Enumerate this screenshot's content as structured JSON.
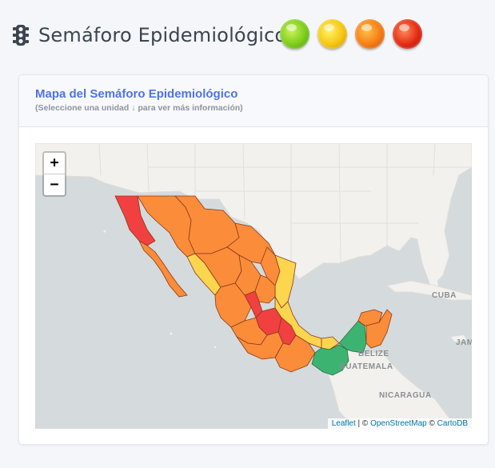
{
  "header": {
    "title": "Semáforo Epidemiológico",
    "icon": "traffic-light-icon",
    "lights": [
      {
        "name": "green",
        "color": "#7ccc1a"
      },
      {
        "name": "yellow",
        "color": "#f6c511"
      },
      {
        "name": "orange",
        "color": "#f57d12"
      },
      {
        "name": "red",
        "color": "#e22a12"
      }
    ]
  },
  "card": {
    "title": "Mapa del Semáforo Epidemiológico",
    "subtitle": "(Seleccione una unidad ↓ para ver más información)"
  },
  "map": {
    "zoom_in_label": "+",
    "zoom_out_label": "−",
    "labels": {
      "cuba": "CUBA",
      "belize": "BELIZE",
      "guatemala": "GUATEMALA",
      "nicaragua": "NICARAGUA",
      "jamaica": "JAM"
    },
    "attribution": {
      "leaflet": "Leaflet",
      "sep1": " | © ",
      "osm": "OpenStreetMap",
      "sep2": " © ",
      "carto": "CartoDB"
    },
    "status_colors": {
      "red": "#f04040",
      "orange": "#fb8c3a",
      "yellow": "#fdd54f",
      "green": "#3cb371"
    }
  }
}
